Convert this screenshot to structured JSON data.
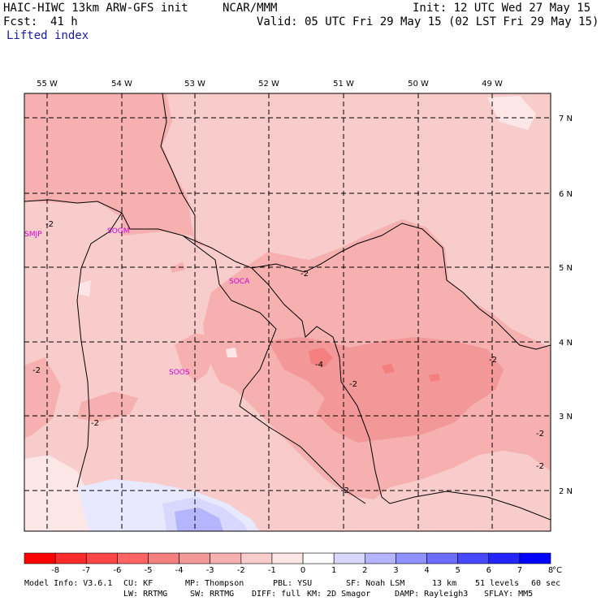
{
  "header": {
    "model_title": "HAIC-HIWC 13km ARW-GFS init",
    "org": "NCAR/MMM",
    "init": "Init: 12 UTC Wed 27 May 15",
    "fcst_label": "Fcst:",
    "fcst_value": "41 h",
    "valid": "Valid: 05 UTC Fri 29 May 15 (02 LST Fri 29 May 15)",
    "field": "Lifted index"
  },
  "map": {
    "lon_labels": [
      "55 W",
      "54 W",
      "53 W",
      "52 W",
      "51 W",
      "50 W",
      "49 W"
    ],
    "lat_labels": [
      "7 N",
      "6 N",
      "5 N",
      "4 N",
      "3 N",
      "2 N"
    ],
    "stations": [
      "SMJP",
      "SOGM",
      "SOCA",
      "SOOS"
    ],
    "contour_labels": [
      "-2",
      "-2",
      "-2",
      "-4",
      "-2",
      "-2",
      "-2",
      "-2",
      "-2",
      "-2"
    ]
  },
  "colorbar": {
    "ticks": [
      "-8",
      "-7",
      "-6",
      "-5",
      "-4",
      "-3",
      "-2",
      "-1",
      "0",
      "1",
      "2",
      "3",
      "4",
      "5",
      "6",
      "7",
      "8"
    ],
    "unit": "°C",
    "colors": [
      "#ff0000",
      "#ff2a2a",
      "#ff4646",
      "#ff6464",
      "#f47f7f",
      "#f29898",
      "#f6b0b0",
      "#f9cccc",
      "#fce6e6",
      "#ffffff",
      "#d8d8ff",
      "#b4b4ff",
      "#9090ff",
      "#6c6cff",
      "#4848ff",
      "#2424ff",
      "#0000ff"
    ]
  },
  "footer": {
    "model_info": "Model Info: V3.6.1",
    "cu": "CU: KF",
    "mp": "MP: Thompson",
    "pbl": "PBL: YSU",
    "sf": "SF: Noah LSM",
    "res": "13 km",
    "levels": "51 levels",
    "dt": "60 sec",
    "lw": "LW: RRTMG",
    "sw": "SW: RRTMG",
    "diff": "DIFF: full",
    "km": "KM: 2D Smagor",
    "damp": "DAMP: Rayleigh3",
    "sflay": "SFLAY: MM5"
  }
}
